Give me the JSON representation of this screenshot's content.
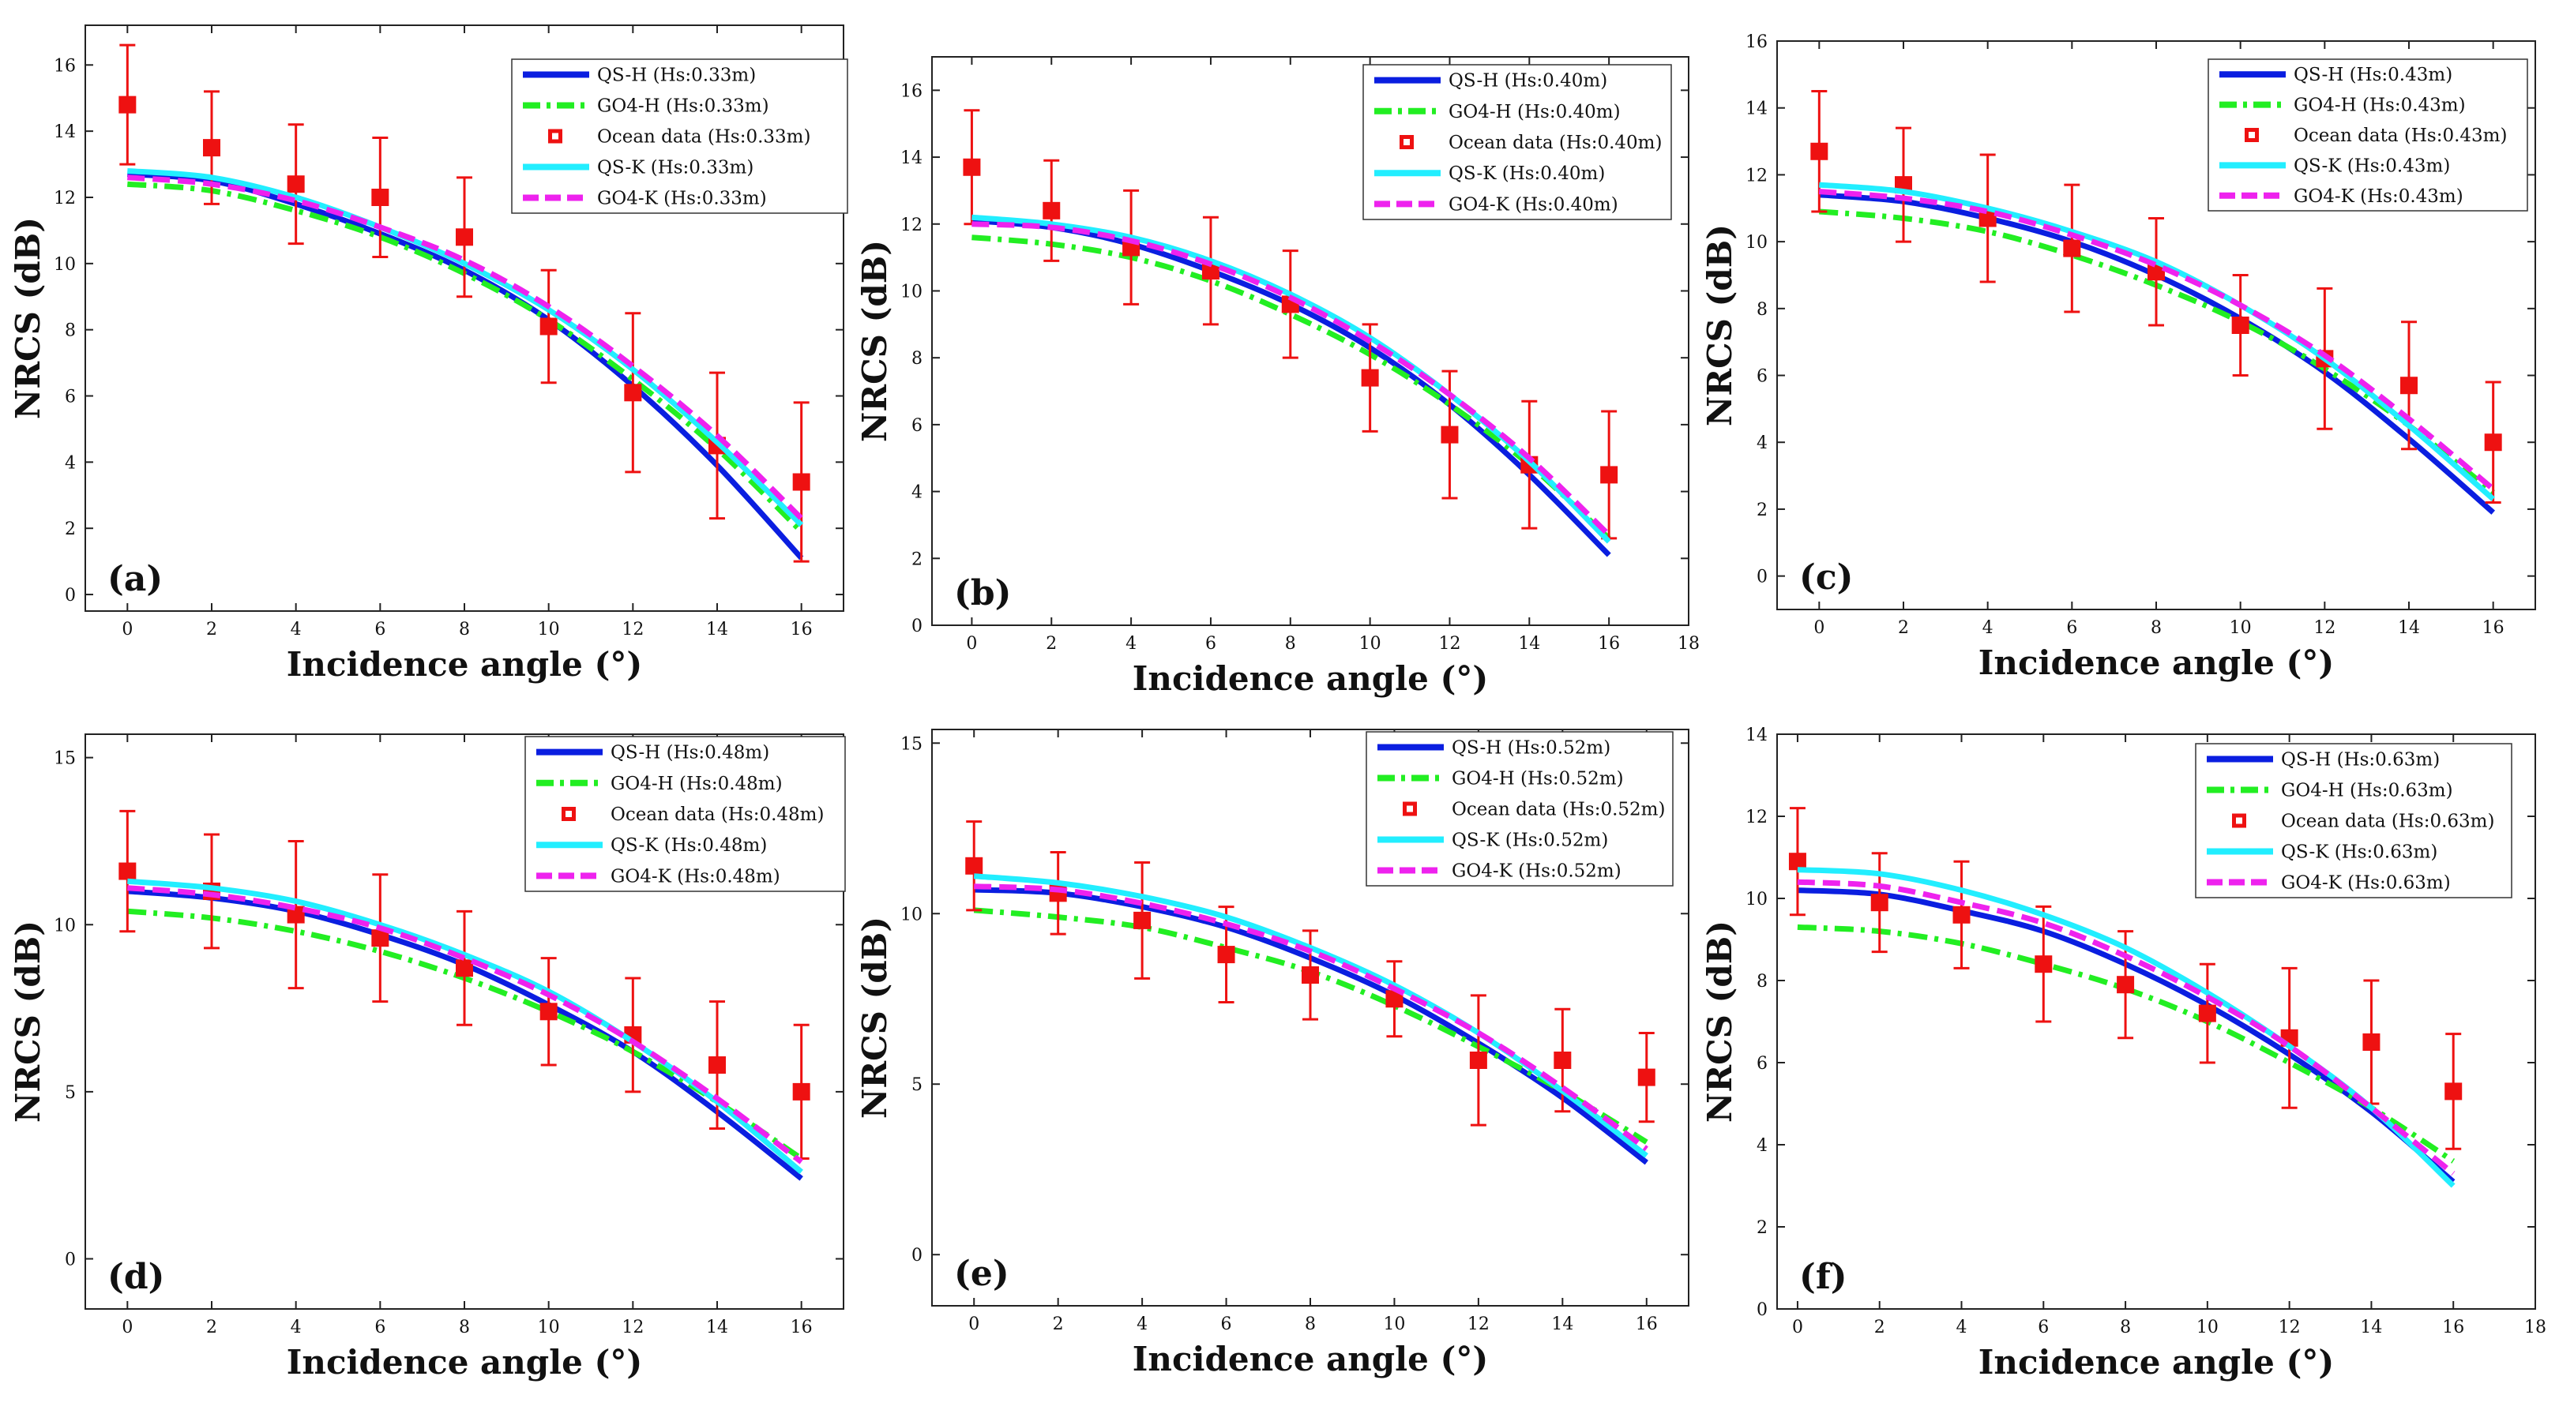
{
  "chart_data": [
    {
      "type": "line",
      "panel_label": "(a)",
      "xlabel": "Incidence angle (°)",
      "ylabel": "NRCS (dB)",
      "xlim": [
        -1,
        17
      ],
      "ylim": [
        -0.5,
        17.2
      ],
      "xticks": [
        0,
        2,
        4,
        6,
        8,
        10,
        12,
        14,
        16
      ],
      "yticks": [
        0,
        2,
        4,
        6,
        8,
        10,
        12,
        14,
        16
      ],
      "legend_position": "top-right",
      "series": [
        {
          "name": "QS-H (Hs:0.33m)",
          "style": "solid",
          "color": "#0a1ee0",
          "x": [
            0,
            2,
            4,
            6,
            8,
            10,
            12,
            14,
            16
          ],
          "values": [
            12.7,
            12.5,
            11.8,
            10.9,
            9.8,
            8.3,
            6.3,
            3.9,
            1.1
          ]
        },
        {
          "name": "GO4-H (Hs:0.33m)",
          "style": "dashdot",
          "color": "#22ee22",
          "x": [
            0,
            2,
            4,
            6,
            8,
            10,
            12,
            14,
            16
          ],
          "values": [
            12.4,
            12.2,
            11.6,
            10.8,
            9.7,
            8.3,
            6.5,
            4.4,
            1.9
          ]
        },
        {
          "name": "Ocean data (Hs:0.33m)",
          "style": "errorbar",
          "color": "#ee1111",
          "x": [
            0,
            2,
            4,
            6,
            8,
            10,
            12,
            14,
            16
          ],
          "values": [
            14.8,
            13.5,
            12.4,
            12.0,
            10.8,
            8.1,
            6.1,
            4.5,
            3.4
          ],
          "error": [
            1.8,
            1.7,
            1.8,
            1.8,
            1.8,
            1.7,
            2.4,
            2.2,
            2.4
          ]
        },
        {
          "name": "QS-K (Hs:0.33m)",
          "style": "solid",
          "color": "#22eeff",
          "x": [
            0,
            2,
            4,
            6,
            8,
            10,
            12,
            14,
            16
          ],
          "values": [
            12.8,
            12.6,
            12.0,
            11.1,
            10.0,
            8.6,
            6.8,
            4.6,
            2.1
          ]
        },
        {
          "name": "GO4-K (Hs:0.33m)",
          "style": "dashed",
          "color": "#ee22ee",
          "x": [
            0,
            2,
            4,
            6,
            8,
            10,
            12,
            14,
            16
          ],
          "values": [
            12.6,
            12.4,
            11.9,
            11.1,
            10.1,
            8.7,
            6.9,
            4.8,
            2.3
          ]
        }
      ]
    },
    {
      "type": "line",
      "panel_label": "(b)",
      "xlabel": "Incidence angle (°)",
      "ylabel": "NRCS (dB)",
      "xlim": [
        -1,
        18
      ],
      "ylim": [
        0,
        17
      ],
      "xticks": [
        0,
        2,
        4,
        6,
        8,
        10,
        12,
        14,
        16,
        18
      ],
      "yticks": [
        0,
        2,
        4,
        6,
        8,
        10,
        12,
        14,
        16
      ],
      "legend_position": "top-right",
      "series": [
        {
          "name": "QS-H (Hs:0.40m)",
          "style": "solid",
          "color": "#0a1ee0",
          "x": [
            0,
            2,
            4,
            6,
            8,
            10,
            12,
            14,
            16
          ],
          "values": [
            12.1,
            11.9,
            11.4,
            10.6,
            9.6,
            8.3,
            6.6,
            4.5,
            2.1
          ]
        },
        {
          "name": "GO4-H (Hs:0.40m)",
          "style": "dashdot",
          "color": "#22ee22",
          "x": [
            0,
            2,
            4,
            6,
            8,
            10,
            12,
            14,
            16
          ],
          "values": [
            11.6,
            11.4,
            11.0,
            10.3,
            9.3,
            8.1,
            6.6,
            4.8,
            2.6
          ]
        },
        {
          "name": "Ocean data (Hs:0.40m)",
          "style": "errorbar",
          "color": "#ee1111",
          "x": [
            0,
            2,
            4,
            6,
            8,
            10,
            12,
            14,
            16
          ],
          "values": [
            13.7,
            12.4,
            11.3,
            10.6,
            9.6,
            7.4,
            5.7,
            4.8,
            4.5
          ],
          "error": [
            1.7,
            1.5,
            1.7,
            1.6,
            1.6,
            1.6,
            1.9,
            1.9,
            1.9
          ]
        },
        {
          "name": "QS-K (Hs:0.40m)",
          "style": "solid",
          "color": "#22eeff",
          "x": [
            0,
            2,
            4,
            6,
            8,
            10,
            12,
            14,
            16
          ],
          "values": [
            12.2,
            12.0,
            11.6,
            10.9,
            9.9,
            8.6,
            6.9,
            4.9,
            2.5
          ]
        },
        {
          "name": "GO4-K (Hs:0.40m)",
          "style": "dashed",
          "color": "#ee22ee",
          "x": [
            0,
            2,
            4,
            6,
            8,
            10,
            12,
            14,
            16
          ],
          "values": [
            12.0,
            11.9,
            11.5,
            10.8,
            9.8,
            8.5,
            6.9,
            5.0,
            2.7
          ]
        }
      ]
    },
    {
      "type": "line",
      "panel_label": "(c)",
      "xlabel": "Incidence angle (°)",
      "ylabel": "NRCS (dB)",
      "xlim": [
        -1,
        17
      ],
      "ylim": [
        -1,
        16
      ],
      "xticks": [
        0,
        2,
        4,
        6,
        8,
        10,
        12,
        14,
        16
      ],
      "yticks": [
        0,
        2,
        4,
        6,
        8,
        10,
        12,
        14,
        16
      ],
      "legend_position": "top-right",
      "series": [
        {
          "name": "QS-H (Hs:0.43m)",
          "style": "solid",
          "color": "#0a1ee0",
          "x": [
            0,
            2,
            4,
            6,
            8,
            10,
            12,
            14,
            16
          ],
          "values": [
            11.4,
            11.2,
            10.7,
            10.0,
            9.0,
            7.7,
            6.1,
            4.1,
            1.9
          ]
        },
        {
          "name": "GO4-H (Hs:0.43m)",
          "style": "dashdot",
          "color": "#22ee22",
          "x": [
            0,
            2,
            4,
            6,
            8,
            10,
            12,
            14,
            16
          ],
          "values": [
            10.9,
            10.7,
            10.3,
            9.6,
            8.7,
            7.6,
            6.2,
            4.5,
            2.5
          ]
        },
        {
          "name": "Ocean data (Hs:0.43m)",
          "style": "errorbar",
          "color": "#ee1111",
          "x": [
            0,
            2,
            4,
            6,
            8,
            10,
            12,
            14,
            16
          ],
          "values": [
            12.7,
            11.7,
            10.7,
            9.8,
            9.1,
            7.5,
            6.5,
            5.7,
            4.0
          ],
          "error": [
            1.8,
            1.7,
            1.9,
            1.9,
            1.6,
            1.5,
            2.1,
            1.9,
            1.8
          ]
        },
        {
          "name": "QS-K (Hs:0.43m)",
          "style": "solid",
          "color": "#22eeff",
          "x": [
            0,
            2,
            4,
            6,
            8,
            10,
            12,
            14,
            16
          ],
          "values": [
            11.7,
            11.5,
            11.0,
            10.3,
            9.4,
            8.1,
            6.5,
            4.5,
            2.3
          ]
        },
        {
          "name": "GO4-K (Hs:0.43m)",
          "style": "dashed",
          "color": "#ee22ee",
          "x": [
            0,
            2,
            4,
            6,
            8,
            10,
            12,
            14,
            16
          ],
          "values": [
            11.5,
            11.3,
            10.9,
            10.2,
            9.3,
            8.1,
            6.6,
            4.7,
            2.6
          ]
        }
      ]
    },
    {
      "type": "line",
      "panel_label": "(d)",
      "xlabel": "Incidence angle (°)",
      "ylabel": "NRCS (dB)",
      "xlim": [
        -1,
        17
      ],
      "ylim": [
        -1.5,
        15.7
      ],
      "xticks": [
        0,
        2,
        4,
        6,
        8,
        10,
        12,
        14,
        16
      ],
      "yticks": [
        0,
        5,
        10,
        15
      ],
      "legend_position": "top-right",
      "series": [
        {
          "name": "QS-H (Hs:0.48m)",
          "style": "solid",
          "color": "#0a1ee0",
          "x": [
            0,
            2,
            4,
            6,
            8,
            10,
            12,
            14,
            16
          ],
          "values": [
            11.0,
            10.8,
            10.4,
            9.7,
            8.8,
            7.6,
            6.2,
            4.4,
            2.4
          ]
        },
        {
          "name": "GO4-H (Hs:0.48m)",
          "style": "dashdot",
          "color": "#22ee22",
          "x": [
            0,
            2,
            4,
            6,
            8,
            10,
            12,
            14,
            16
          ],
          "values": [
            10.4,
            10.2,
            9.8,
            9.2,
            8.4,
            7.4,
            6.2,
            4.7,
            3.0
          ]
        },
        {
          "name": "Ocean data (Hs:0.48m)",
          "style": "errorbar",
          "color": "#ee1111",
          "x": [
            0,
            2,
            4,
            6,
            8,
            10,
            12,
            14,
            16
          ],
          "values": [
            11.6,
            11.0,
            10.3,
            9.6,
            8.7,
            7.4,
            6.7,
            5.8,
            5.0
          ],
          "error": [
            1.8,
            1.7,
            2.2,
            1.9,
            1.7,
            1.6,
            1.7,
            1.9,
            2.0
          ]
        },
        {
          "name": "QS-K (Hs:0.48m)",
          "style": "solid",
          "color": "#22eeff",
          "x": [
            0,
            2,
            4,
            6,
            8,
            10,
            12,
            14,
            16
          ],
          "values": [
            11.3,
            11.1,
            10.7,
            10.0,
            9.1,
            8.0,
            6.5,
            4.7,
            2.6
          ]
        },
        {
          "name": "GO4-K (Hs:0.48m)",
          "style": "dashed",
          "color": "#ee22ee",
          "x": [
            0,
            2,
            4,
            6,
            8,
            10,
            12,
            14,
            16
          ],
          "values": [
            11.1,
            10.9,
            10.5,
            9.9,
            9.0,
            7.9,
            6.5,
            4.8,
            2.9
          ]
        }
      ]
    },
    {
      "type": "line",
      "panel_label": "(e)",
      "xlabel": "Incidence angle (°)",
      "ylabel": "NRCS (dB)",
      "xlim": [
        -1,
        17
      ],
      "ylim": [
        -1.5,
        15.4
      ],
      "xticks": [
        0,
        2,
        4,
        6,
        8,
        10,
        12,
        14,
        16
      ],
      "yticks": [
        0,
        5,
        10,
        15
      ],
      "legend_position": "top-right",
      "series": [
        {
          "name": "QS-H (Hs:0.52m)",
          "style": "solid",
          "color": "#0a1ee0",
          "x": [
            0,
            2,
            4,
            6,
            8,
            10,
            12,
            14,
            16
          ],
          "values": [
            10.7,
            10.6,
            10.2,
            9.6,
            8.7,
            7.6,
            6.2,
            4.6,
            2.7
          ]
        },
        {
          "name": "GO4-H (Hs:0.52m)",
          "style": "dashdot",
          "color": "#22ee22",
          "x": [
            0,
            2,
            4,
            6,
            8,
            10,
            12,
            14,
            16
          ],
          "values": [
            10.1,
            9.9,
            9.6,
            9.0,
            8.3,
            7.3,
            6.1,
            4.8,
            3.3
          ]
        },
        {
          "name": "Ocean data (Hs:0.52m)",
          "style": "errorbar",
          "color": "#ee1111",
          "x": [
            0,
            2,
            4,
            6,
            8,
            10,
            12,
            14,
            16
          ],
          "values": [
            11.4,
            10.6,
            9.8,
            8.8,
            8.2,
            7.5,
            5.7,
            5.7,
            5.2
          ],
          "error": [
            1.3,
            1.2,
            1.7,
            1.4,
            1.3,
            1.1,
            1.9,
            1.5,
            1.3
          ]
        },
        {
          "name": "QS-K (Hs:0.52m)",
          "style": "solid",
          "color": "#22eeff",
          "x": [
            0,
            2,
            4,
            6,
            8,
            10,
            12,
            14,
            16
          ],
          "values": [
            11.1,
            10.9,
            10.5,
            9.9,
            9.0,
            7.9,
            6.5,
            4.8,
            2.9
          ]
        },
        {
          "name": "GO4-K (Hs:0.52m)",
          "style": "dashed",
          "color": "#ee22ee",
          "x": [
            0,
            2,
            4,
            6,
            8,
            10,
            12,
            14,
            16
          ],
          "values": [
            10.8,
            10.7,
            10.3,
            9.7,
            8.9,
            7.8,
            6.5,
            4.9,
            3.1
          ]
        }
      ]
    },
    {
      "type": "line",
      "panel_label": "(f)",
      "xlabel": "Incidence angle (°)",
      "ylabel": "NRCS (dB)",
      "xlim": [
        -0.5,
        18
      ],
      "ylim": [
        0,
        14
      ],
      "xticks": [
        0,
        2,
        4,
        6,
        8,
        10,
        12,
        14,
        16,
        18
      ],
      "yticks": [
        0,
        2,
        4,
        6,
        8,
        10,
        12,
        14
      ],
      "legend_position": "top-right",
      "series": [
        {
          "name": "QS-H (Hs:0.63m)",
          "style": "solid",
          "color": "#0a1ee0",
          "x": [
            0,
            2,
            4,
            6,
            8,
            10,
            12,
            14,
            16
          ],
          "values": [
            10.2,
            10.1,
            9.7,
            9.2,
            8.4,
            7.4,
            6.2,
            4.8,
            3.1
          ]
        },
        {
          "name": "GO4-H (Hs:0.63m)",
          "style": "dashdot",
          "color": "#22ee22",
          "x": [
            0,
            2,
            4,
            6,
            8,
            10,
            12,
            14,
            16
          ],
          "values": [
            9.3,
            9.2,
            8.9,
            8.4,
            7.8,
            7.0,
            6.0,
            4.9,
            3.6
          ]
        },
        {
          "name": "Ocean data (Hs:0.63m)",
          "style": "errorbar",
          "color": "#ee1111",
          "x": [
            0,
            2,
            4,
            6,
            8,
            10,
            12,
            14,
            16
          ],
          "values": [
            10.9,
            9.9,
            9.6,
            8.4,
            7.9,
            7.2,
            6.6,
            6.5,
            5.3
          ],
          "error": [
            1.3,
            1.2,
            1.3,
            1.4,
            1.3,
            1.2,
            1.7,
            1.5,
            1.4
          ]
        },
        {
          "name": "QS-K (Hs:0.63m)",
          "style": "solid",
          "color": "#22eeff",
          "x": [
            0,
            2,
            4,
            6,
            8,
            10,
            12,
            14,
            16
          ],
          "values": [
            10.7,
            10.6,
            10.2,
            9.6,
            8.8,
            7.7,
            6.4,
            4.9,
            3.0
          ]
        },
        {
          "name": "GO4-K (Hs:0.63m)",
          "style": "dashed",
          "color": "#ee22ee",
          "x": [
            0,
            2,
            4,
            6,
            8,
            10,
            12,
            14,
            16
          ],
          "values": [
            10.4,
            10.3,
            9.9,
            9.4,
            8.6,
            7.6,
            6.4,
            4.9,
            3.3
          ]
        }
      ]
    }
  ]
}
